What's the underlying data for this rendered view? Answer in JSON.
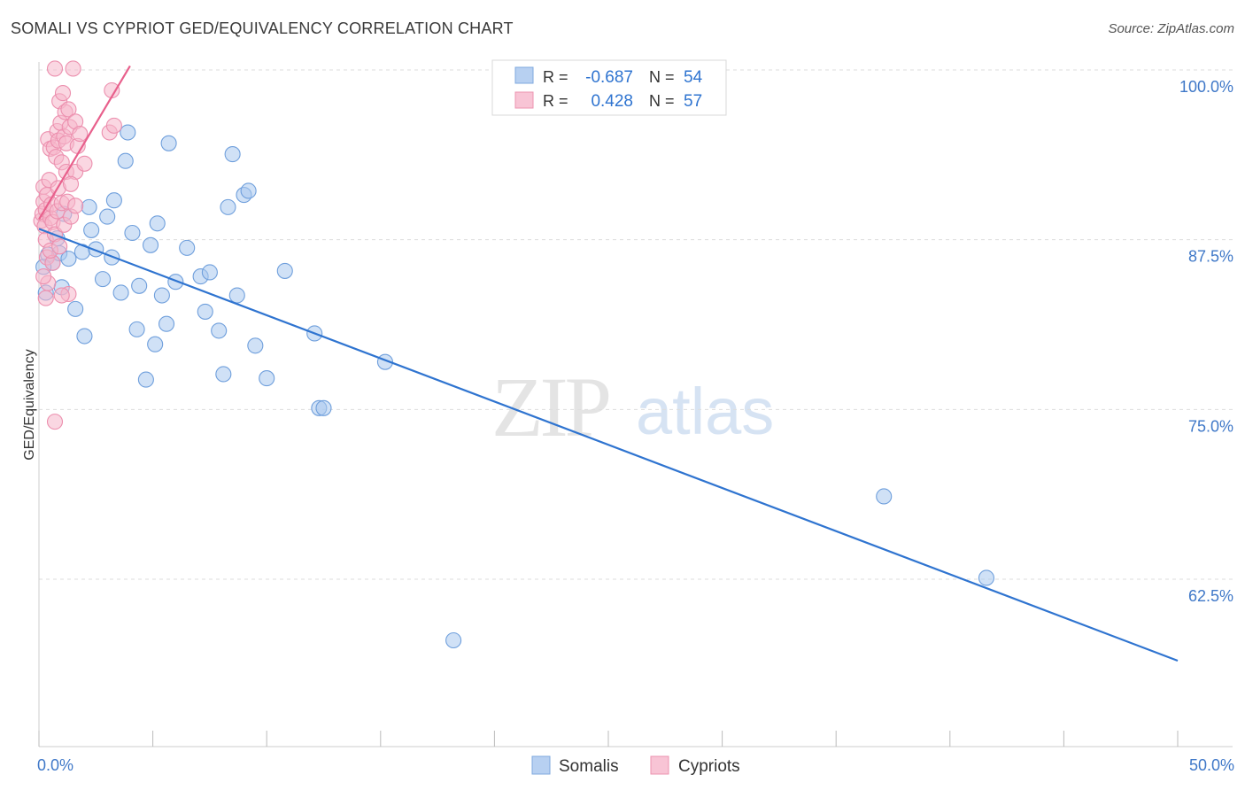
{
  "title": "SOMALI VS CYPRIOT GED/EQUIVALENCY CORRELATION CHART",
  "source": "Source: ZipAtlas.com",
  "colors": {
    "blue": "#2f74d0",
    "blue_fill": "#a9c8ee",
    "pink": "#e8608c",
    "pink_fill": "#f6b6cb",
    "axis_text": "#3f78c8",
    "grid": "#dddddd"
  },
  "legend": {
    "rows": [
      {
        "r_label": "R =",
        "r_value": "-0.687",
        "n_label": "N =",
        "n_value": "54"
      },
      {
        "r_label": "R =",
        "r_value": "0.428",
        "n_label": "N =",
        "n_value": "57"
      }
    ]
  },
  "bottom_legend": {
    "somalis": "Somalis",
    "cypriots": "Cypriots"
  },
  "watermark": {
    "zip": "ZIP",
    "atlas": "atlas"
  },
  "chart_data": {
    "type": "scatter",
    "xlabel": "",
    "ylabel": "GED/Equivalency",
    "xlim": [
      0,
      50
    ],
    "ylim": [
      51.5,
      102
    ],
    "x_tick_labels": [
      {
        "value": 0,
        "label": "0.0%"
      },
      {
        "value": 50,
        "label": "50.0%"
      }
    ],
    "y_tick_labels": [
      {
        "value": 100,
        "label": "100.0%"
      },
      {
        "value": 87.5,
        "label": "87.5%"
      },
      {
        "value": 75,
        "label": "75.0%"
      },
      {
        "value": 62.5,
        "label": "62.5%"
      }
    ],
    "series": [
      {
        "name": "Somalis",
        "r": -0.687,
        "n": 54,
        "trendline": [
          [
            0,
            88.3
          ],
          [
            50,
            56.5
          ]
        ],
        "points": [
          [
            0.3,
            83.6
          ],
          [
            0.4,
            86.4
          ],
          [
            0.6,
            85.8
          ],
          [
            0.8,
            87.6
          ],
          [
            0.9,
            86.5
          ],
          [
            1.1,
            89.4
          ],
          [
            1.3,
            86.1
          ],
          [
            1.6,
            82.4
          ],
          [
            1.9,
            86.6
          ],
          [
            2.0,
            80.4
          ],
          [
            2.2,
            89.9
          ],
          [
            2.3,
            88.2
          ],
          [
            2.5,
            86.8
          ],
          [
            2.8,
            84.6
          ],
          [
            3.0,
            89.2
          ],
          [
            3.2,
            86.2
          ],
          [
            3.3,
            90.4
          ],
          [
            3.6,
            83.6
          ],
          [
            3.8,
            93.3
          ],
          [
            3.9,
            95.4
          ],
          [
            4.1,
            88.0
          ],
          [
            4.3,
            80.9
          ],
          [
            4.4,
            84.1
          ],
          [
            4.7,
            77.2
          ],
          [
            4.9,
            87.1
          ],
          [
            5.1,
            79.8
          ],
          [
            5.2,
            88.7
          ],
          [
            5.4,
            83.4
          ],
          [
            5.6,
            81.3
          ],
          [
            5.7,
            94.6
          ],
          [
            6.0,
            84.4
          ],
          [
            6.5,
            86.9
          ],
          [
            7.1,
            84.8
          ],
          [
            7.3,
            82.2
          ],
          [
            7.5,
            85.1
          ],
          [
            7.9,
            80.8
          ],
          [
            8.1,
            77.6
          ],
          [
            8.3,
            89.9
          ],
          [
            8.5,
            93.8
          ],
          [
            8.7,
            83.4
          ],
          [
            9.0,
            90.8
          ],
          [
            9.2,
            91.1
          ],
          [
            9.5,
            79.7
          ],
          [
            10.0,
            77.3
          ],
          [
            10.8,
            85.2
          ],
          [
            12.1,
            80.6
          ],
          [
            12.3,
            75.1
          ],
          [
            12.5,
            75.1
          ],
          [
            15.2,
            78.5
          ],
          [
            18.2,
            58.0
          ],
          [
            37.1,
            68.6
          ],
          [
            41.6,
            62.6
          ],
          [
            0.2,
            85.5
          ],
          [
            1.0,
            84.0
          ]
        ]
      },
      {
        "name": "Cypriots",
        "r": 0.428,
        "n": 57,
        "trendline": [
          [
            0,
            89.0
          ],
          [
            4.0,
            100.3
          ]
        ],
        "points": [
          [
            0.1,
            88.9
          ],
          [
            0.15,
            89.4
          ],
          [
            0.2,
            90.3
          ],
          [
            0.2,
            91.4
          ],
          [
            0.25,
            88.5
          ],
          [
            0.3,
            89.7
          ],
          [
            0.3,
            87.5
          ],
          [
            0.35,
            90.8
          ],
          [
            0.35,
            86.2
          ],
          [
            0.4,
            84.3
          ],
          [
            0.4,
            94.9
          ],
          [
            0.45,
            91.9
          ],
          [
            0.5,
            94.2
          ],
          [
            0.5,
            89.1
          ],
          [
            0.55,
            90.1
          ],
          [
            0.6,
            85.8
          ],
          [
            0.6,
            88.8
          ],
          [
            0.65,
            94.3
          ],
          [
            0.7,
            87.9
          ],
          [
            0.7,
            100.1
          ],
          [
            0.75,
            93.6
          ],
          [
            0.8,
            95.5
          ],
          [
            0.8,
            89.6
          ],
          [
            0.85,
            94.8
          ],
          [
            0.85,
            91.3
          ],
          [
            0.9,
            97.7
          ],
          [
            0.95,
            96.1
          ],
          [
            1.0,
            93.2
          ],
          [
            1.0,
            90.2
          ],
          [
            1.05,
            98.3
          ],
          [
            1.1,
            95.1
          ],
          [
            1.1,
            88.6
          ],
          [
            1.15,
            96.9
          ],
          [
            1.2,
            94.6
          ],
          [
            1.2,
            92.5
          ],
          [
            1.25,
            90.3
          ],
          [
            1.3,
            97.1
          ],
          [
            1.3,
            83.5
          ],
          [
            1.35,
            95.8
          ],
          [
            1.4,
            89.2
          ],
          [
            1.5,
            100.1
          ],
          [
            1.6,
            92.5
          ],
          [
            1.6,
            90.0
          ],
          [
            1.6,
            96.2
          ],
          [
            1.7,
            94.4
          ],
          [
            1.8,
            95.3
          ],
          [
            2.0,
            93.1
          ],
          [
            3.1,
            95.4
          ],
          [
            3.2,
            98.5
          ],
          [
            3.3,
            95.9
          ],
          [
            0.7,
            74.1
          ],
          [
            0.5,
            86.7
          ],
          [
            0.3,
            83.2
          ],
          [
            1.0,
            83.4
          ],
          [
            0.9,
            87.0
          ],
          [
            0.2,
            84.8
          ],
          [
            1.4,
            91.6
          ]
        ]
      }
    ]
  }
}
